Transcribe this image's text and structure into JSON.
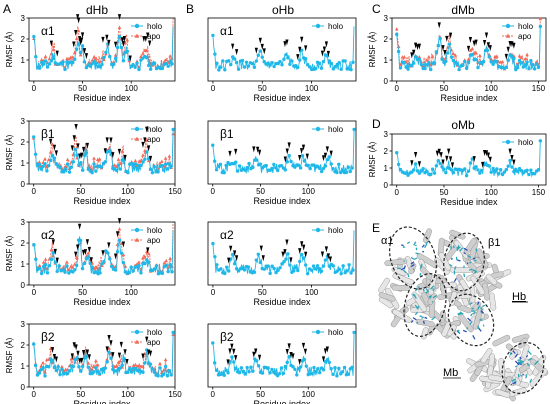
{
  "figure": {
    "panel_letters": [
      "A",
      "B",
      "C",
      "D",
      "E"
    ],
    "column_titles": [
      "dHb",
      "oHb",
      "dMb"
    ],
    "panel_d_title": "oMb",
    "ylabel": "RMSF (Å)",
    "xlabel": "Residue index",
    "legend_holo": "holo",
    "legend_apo": "apo",
    "structure_labels": {
      "alpha1": "α1",
      "beta1": "β1",
      "hb": "Hb",
      "mb": "Mb"
    },
    "colors": {
      "holo": "#1fb8e8",
      "apo": "#f26b5b",
      "marker": "#000000"
    }
  },
  "chart_data": [
    {
      "id": "A1",
      "type": "line",
      "title": "dHb",
      "panel_label": "α1",
      "ylabel": "RMSF (Å)",
      "xlabel": "Residue index",
      "xlim": [
        -5,
        145
      ],
      "ylim": [
        0,
        3
      ],
      "xticks": [
        0,
        50,
        100
      ],
      "yticks": [
        1,
        2,
        3
      ],
      "series": [
        {
          "name": "holo"
        },
        {
          "name": "apo"
        }
      ]
    },
    {
      "id": "A2",
      "type": "line",
      "panel_label": "β1",
      "ylabel": "RMSF (Å)",
      "xlabel": "Residue index",
      "xlim": [
        -5,
        150
      ],
      "ylim": [
        0,
        3
      ],
      "xticks": [
        0,
        50,
        100,
        150
      ],
      "yticks": [
        0,
        1,
        2,
        3
      ],
      "series": [
        {
          "name": "holo"
        },
        {
          "name": "apo"
        }
      ]
    },
    {
      "id": "A3",
      "type": "line",
      "panel_label": "α2",
      "ylabel": "RMSF (Å)",
      "xlabel": "Residue index",
      "xlim": [
        -5,
        145
      ],
      "ylim": [
        0,
        3
      ],
      "xticks": [
        0,
        50,
        100
      ],
      "yticks": [
        0,
        1,
        2,
        3
      ],
      "series": [
        {
          "name": "holo"
        },
        {
          "name": "apo"
        }
      ]
    },
    {
      "id": "A4",
      "type": "line",
      "panel_label": "β2",
      "ylabel": "RMSF (Å)",
      "xlabel": "Residue index",
      "xlim": [
        -5,
        150
      ],
      "ylim": [
        0,
        3
      ],
      "xticks": [
        0,
        50,
        100,
        150
      ],
      "yticks": [
        0,
        1,
        2,
        3
      ],
      "series": [
        {
          "name": "holo"
        },
        {
          "name": "apo"
        }
      ]
    },
    {
      "id": "B1",
      "type": "line",
      "title": "oHb",
      "panel_label": "α1",
      "xlabel": "Residue index",
      "xlim": [
        -5,
        145
      ],
      "ylim": [
        0,
        3
      ],
      "xticks": [
        0,
        50,
        100
      ],
      "yticks": [],
      "series": [
        {
          "name": "holo"
        }
      ]
    },
    {
      "id": "B2",
      "type": "line",
      "panel_label": "β1",
      "xlabel": "Residue index",
      "xlim": [
        -5,
        150
      ],
      "ylim": [
        0,
        3
      ],
      "xticks": [
        0,
        50,
        100
      ],
      "yticks": [],
      "series": [
        {
          "name": "holo"
        }
      ]
    },
    {
      "id": "B3",
      "type": "line",
      "panel_label": "α2",
      "xlabel": "Residue index",
      "xlim": [
        -5,
        145
      ],
      "ylim": [
        0,
        3
      ],
      "xticks": [
        0,
        50,
        100
      ],
      "yticks": [],
      "series": [
        {
          "name": "holo"
        }
      ]
    },
    {
      "id": "B4",
      "type": "line",
      "panel_label": "β2",
      "xlabel": "Residue index",
      "xlim": [
        -5,
        150
      ],
      "ylim": [
        0,
        3
      ],
      "xticks": [
        0,
        50,
        100
      ],
      "yticks": [],
      "series": [
        {
          "name": "holo"
        }
      ]
    },
    {
      "id": "C",
      "type": "line",
      "title": "dMb",
      "ylabel": "RMSF (Å)",
      "xlabel": "Residue index",
      "xlim": [
        -5,
        158
      ],
      "ylim": [
        0,
        3
      ],
      "xticks": [
        0,
        50,
        100,
        150
      ],
      "yticks": [
        0,
        1,
        2,
        3
      ],
      "series": [
        {
          "name": "holo"
        },
        {
          "name": "apo"
        }
      ]
    },
    {
      "id": "D",
      "type": "line",
      "title": "oMb",
      "ylabel": "RMSF (Å)",
      "xlabel": "Residue index",
      "xlim": [
        -5,
        158
      ],
      "ylim": [
        0,
        3
      ],
      "xticks": [
        0,
        50,
        100,
        150
      ],
      "yticks": [
        0,
        1,
        2,
        3
      ],
      "series": [
        {
          "name": "holo"
        }
      ]
    }
  ]
}
